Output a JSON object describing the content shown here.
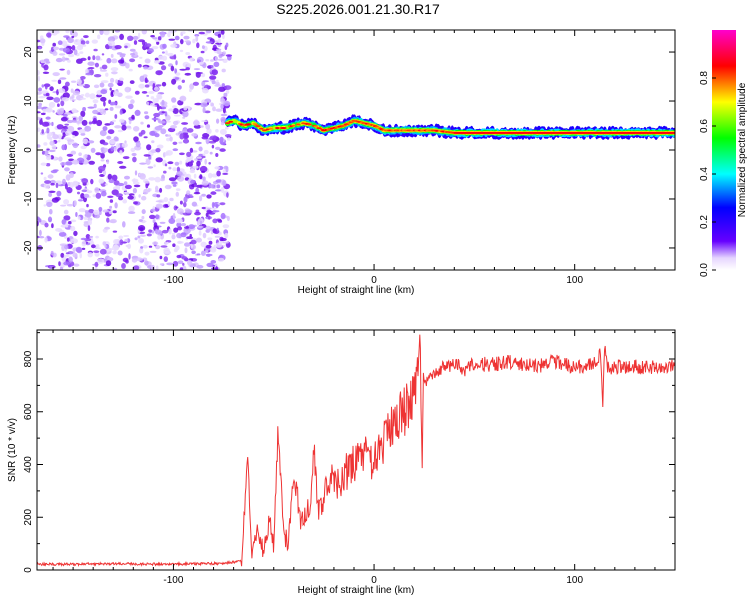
{
  "title": "S225.2026.001.21.30.R17",
  "chart_data": [
    {
      "type": "heatmap",
      "panel": "spectrogram",
      "xlabel": "Height of straight line (km)",
      "ylabel": "Frequency (Hz)",
      "xlim": [
        -168,
        150
      ],
      "ylim": [
        -24.5,
        24.5
      ],
      "x_ticks": [
        -100,
        0,
        100
      ],
      "y_ticks": [
        -20,
        -10,
        0,
        10,
        20
      ],
      "noise_region_x": [
        -168,
        -75
      ],
      "ridge": {
        "x": [
          -73,
          -70,
          -65,
          -60,
          -55,
          -50,
          -45,
          -40,
          -35,
          -30,
          -25,
          -20,
          -15,
          -10,
          -5,
          0,
          5,
          10,
          15,
          20,
          30,
          40,
          50,
          60,
          70,
          80,
          90,
          100,
          110,
          120,
          130,
          140,
          150
        ],
        "freq": [
          5.5,
          6.0,
          5.0,
          5.5,
          4.0,
          4.5,
          4.5,
          5.0,
          5.5,
          5.0,
          4.0,
          4.5,
          5.0,
          6.0,
          5.5,
          5.0,
          4.0,
          4.0,
          4.0,
          4.0,
          4.0,
          3.5,
          3.5,
          3.5,
          3.5,
          3.5,
          3.5,
          3.5,
          3.5,
          3.5,
          3.5,
          3.5,
          3.5
        ]
      },
      "colorbar": {
        "label": "Normalized spectral amplitude",
        "range": [
          0.0,
          1.0
        ],
        "ticks": [
          "0.0",
          "0.2",
          "0.4",
          "0.6",
          "0.8"
        ],
        "colors": [
          "#ffffff",
          "#6600ff",
          "#0000ff",
          "#00ffff",
          "#00ff00",
          "#ffff00",
          "#ff0000",
          "#ff00cc"
        ]
      }
    },
    {
      "type": "line",
      "panel": "snr",
      "xlabel": "Height of straight line (km)",
      "ylabel": "SNR (10 * v/v)",
      "xlim": [
        -168,
        150
      ],
      "ylim": [
        0,
        910
      ],
      "x_ticks": [
        -100,
        0,
        100
      ],
      "y_ticks": [
        0,
        200,
        400,
        600,
        800
      ],
      "color": "#ee3333",
      "series": [
        {
          "name": "SNR",
          "x": [
            -168,
            -150,
            -130,
            -110,
            -90,
            -75,
            -66,
            -63,
            -61,
            -58,
            -55,
            -52,
            -50,
            -48,
            -45,
            -43,
            -40,
            -37,
            -35,
            -32,
            -30,
            -28,
            -25,
            -22,
            -20,
            -15,
            -10,
            -5,
            0,
            5,
            10,
            15,
            18,
            20,
            22,
            23,
            24,
            24.5,
            25,
            27,
            30,
            35,
            40,
            45,
            50,
            60,
            70,
            80,
            90,
            100,
            110,
            113,
            114,
            115,
            116,
            117,
            120,
            130,
            140,
            150
          ],
          "y": [
            22,
            22,
            24,
            22,
            23,
            25,
            35,
            440,
            60,
            150,
            70,
            190,
            90,
            510,
            160,
            90,
            380,
            200,
            210,
            250,
            470,
            240,
            280,
            360,
            310,
            360,
            410,
            440,
            420,
            480,
            560,
            600,
            640,
            700,
            740,
            900,
            360,
            760,
            700,
            740,
            740,
            770,
            780,
            760,
            780,
            780,
            790,
            770,
            790,
            770,
            780,
            820,
            600,
            890,
            760,
            770,
            770,
            770,
            770,
            770
          ]
        }
      ]
    }
  ]
}
